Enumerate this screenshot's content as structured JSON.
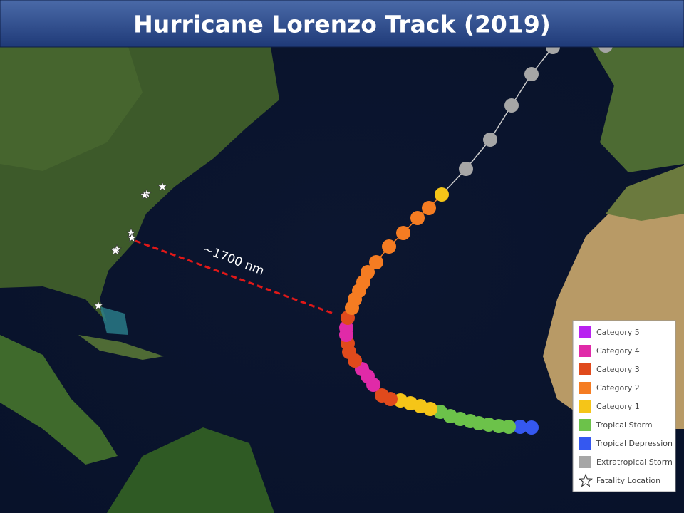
{
  "title": "Hurricane Lorenzo Track (2019)",
  "annotation": "~1700 nm",
  "legend": [
    {
      "label": "Category 5",
      "color": "#b822f0"
    },
    {
      "label": "Category 4",
      "color": "#e02aa8"
    },
    {
      "label": "Category 3",
      "color": "#e04a1c"
    },
    {
      "label": "Category 2",
      "color": "#f57c22"
    },
    {
      "label": "Category 1",
      "color": "#f5c518"
    },
    {
      "label": "Tropical Storm",
      "color": "#6cc24a"
    },
    {
      "label": "Tropical Depression",
      "color": "#3558f0"
    },
    {
      "label": "Extratropical Storm",
      "color": "#a6a6a6"
    },
    {
      "label": "Fatality Location"
    }
  ]
}
